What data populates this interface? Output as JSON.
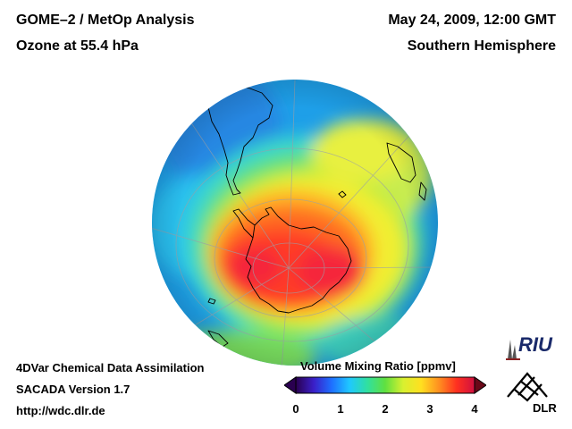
{
  "header": {
    "title": "GOME–2 / MetOp Analysis",
    "subtitle": "Ozone at 55.4 hPa",
    "date": "May 24, 2009, 12:00 GMT",
    "hemisphere": "Southern Hemisphere"
  },
  "footer": {
    "line1": "4DVar Chemical Data Assimilation",
    "line2": "SACADA Version 1.7",
    "line3": "http://wdc.dlr.de"
  },
  "colorbar": {
    "label": "Volume Mixing Ratio [ppmv]",
    "ticks": [
      "0",
      "1",
      "2",
      "3",
      "4"
    ],
    "range": [
      0,
      4
    ],
    "colors": [
      "#2a0050",
      "#3a1fc8",
      "#1e6fff",
      "#1fc8ff",
      "#30e0a0",
      "#60e040",
      "#d8f030",
      "#ffe020",
      "#ff9020",
      "#ff3020",
      "#d01040"
    ]
  },
  "logos": {
    "riu": "RIU",
    "dlr": "DLR"
  },
  "map": {
    "projection": "orthographic",
    "center": "South Pole",
    "field": "ozone volume mixing ratio"
  }
}
